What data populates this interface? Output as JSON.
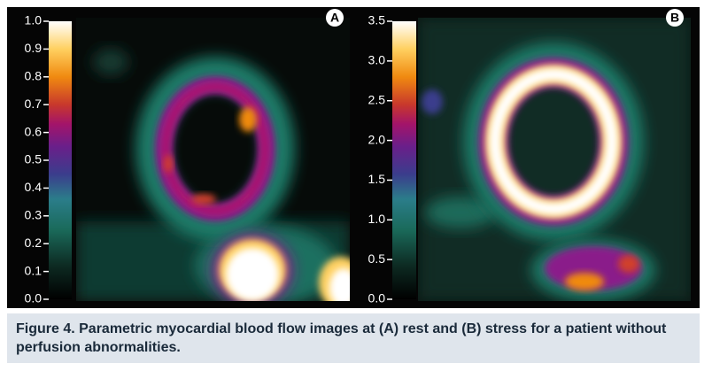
{
  "panels": [
    {
      "label": "A",
      "colorbar": {
        "lim": [
          0,
          1
        ],
        "ticks": [
          {
            "value": 0,
            "label": "0.0"
          },
          {
            "value": 0.1,
            "label": "0.1"
          },
          {
            "value": 0.2,
            "label": "0.2"
          },
          {
            "value": 0.3,
            "label": "0.3"
          },
          {
            "value": 0.4,
            "label": "0.4"
          },
          {
            "value": 0.5,
            "label": "0.5"
          },
          {
            "value": 0.6,
            "label": "0.6"
          },
          {
            "value": 0.7,
            "label": "0.7"
          },
          {
            "value": 0.8,
            "label": "0.8"
          },
          {
            "value": 0.9,
            "label": "0.9"
          },
          {
            "value": 1,
            "label": "1.0"
          }
        ]
      }
    },
    {
      "label": "B",
      "colorbar": {
        "lim": [
          0,
          3.5
        ],
        "ticks": [
          {
            "value": 0,
            "label": "0.0"
          },
          {
            "value": 0.5,
            "label": "0.5"
          },
          {
            "value": 1,
            "label": "1.0"
          },
          {
            "value": 1.5,
            "label": "1.5"
          },
          {
            "value": 2,
            "label": "2.0"
          },
          {
            "value": 2.5,
            "label": "2.5"
          },
          {
            "value": 3,
            "label": "3.0"
          },
          {
            "value": 3.5,
            "label": "3.5"
          }
        ]
      }
    }
  ],
  "caption": "Figure 4. Parametric myocardial blood flow images at (A) rest and (B) stress for a patient without perfusion abnormalities."
}
